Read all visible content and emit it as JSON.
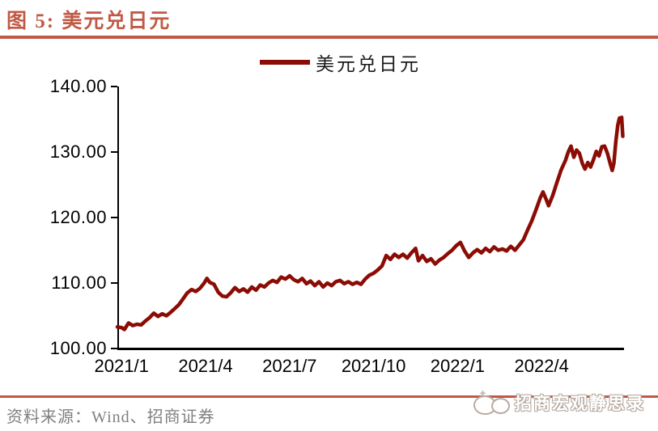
{
  "header": {
    "title": "图 5:  美元兑日元"
  },
  "legend": {
    "label": "美元兑日元"
  },
  "footer": {
    "source": "资料来源：Wind、招商证券",
    "watermark": "招商宏观静思录"
  },
  "colors": {
    "accent": "#C05A45",
    "line": "#8B0C04",
    "axis": "#000000",
    "text": "#1a1a1a",
    "source_text": "#7f7f7f"
  },
  "chart_data": {
    "type": "line",
    "title": "美元兑日元",
    "xlabel": "",
    "ylabel": "",
    "ylim": [
      100,
      140
    ],
    "grid": false,
    "legend_position": "top-center",
    "y_ticks": {
      "values": [
        100,
        110,
        120,
        130,
        140
      ],
      "labels": [
        "100.00",
        "110.00",
        "120.00",
        "130.00",
        "140.00"
      ]
    },
    "x_ticks": {
      "labels": [
        "2021/1",
        "2021/4",
        "2021/7",
        "2021/10",
        "2022/1",
        "2022/4"
      ],
      "month_positions": [
        0,
        3,
        6,
        9,
        12,
        15
      ]
    },
    "series": [
      {
        "name": "美元兑日元",
        "points": [
          [
            -0.15,
            103.3
          ],
          [
            0.0,
            103.2
          ],
          [
            0.1,
            102.9
          ],
          [
            0.25,
            103.9
          ],
          [
            0.4,
            103.5
          ],
          [
            0.55,
            103.7
          ],
          [
            0.7,
            103.6
          ],
          [
            0.85,
            104.2
          ],
          [
            1.0,
            104.7
          ],
          [
            1.15,
            105.4
          ],
          [
            1.3,
            104.9
          ],
          [
            1.45,
            105.3
          ],
          [
            1.6,
            105.0
          ],
          [
            1.75,
            105.5
          ],
          [
            1.9,
            106.1
          ],
          [
            2.05,
            106.7
          ],
          [
            2.2,
            107.6
          ],
          [
            2.35,
            108.5
          ],
          [
            2.5,
            109.0
          ],
          [
            2.65,
            108.7
          ],
          [
            2.8,
            109.2
          ],
          [
            2.95,
            110.0
          ],
          [
            3.05,
            110.7
          ],
          [
            3.15,
            110.1
          ],
          [
            3.3,
            109.8
          ],
          [
            3.45,
            108.6
          ],
          [
            3.6,
            108.0
          ],
          [
            3.75,
            107.9
          ],
          [
            3.9,
            108.5
          ],
          [
            4.05,
            109.3
          ],
          [
            4.2,
            108.7
          ],
          [
            4.35,
            109.1
          ],
          [
            4.5,
            108.6
          ],
          [
            4.65,
            109.4
          ],
          [
            4.8,
            108.9
          ],
          [
            4.95,
            109.7
          ],
          [
            5.1,
            109.4
          ],
          [
            5.25,
            110.0
          ],
          [
            5.4,
            110.4
          ],
          [
            5.55,
            110.1
          ],
          [
            5.7,
            110.9
          ],
          [
            5.85,
            110.6
          ],
          [
            6.0,
            111.1
          ],
          [
            6.15,
            110.5
          ],
          [
            6.3,
            110.2
          ],
          [
            6.45,
            110.7
          ],
          [
            6.6,
            109.9
          ],
          [
            6.75,
            110.3
          ],
          [
            6.9,
            109.6
          ],
          [
            7.05,
            110.2
          ],
          [
            7.2,
            109.4
          ],
          [
            7.35,
            110.0
          ],
          [
            7.5,
            109.6
          ],
          [
            7.65,
            110.2
          ],
          [
            7.8,
            110.4
          ],
          [
            7.95,
            109.9
          ],
          [
            8.1,
            110.2
          ],
          [
            8.25,
            109.8
          ],
          [
            8.4,
            110.1
          ],
          [
            8.55,
            109.8
          ],
          [
            8.7,
            110.6
          ],
          [
            8.85,
            111.2
          ],
          [
            9.0,
            111.5
          ],
          [
            9.15,
            112.0
          ],
          [
            9.3,
            112.6
          ],
          [
            9.45,
            114.2
          ],
          [
            9.6,
            113.6
          ],
          [
            9.75,
            114.4
          ],
          [
            9.9,
            113.9
          ],
          [
            10.05,
            114.4
          ],
          [
            10.2,
            113.8
          ],
          [
            10.35,
            114.6
          ],
          [
            10.5,
            115.3
          ],
          [
            10.6,
            113.4
          ],
          [
            10.75,
            114.2
          ],
          [
            10.9,
            113.3
          ],
          [
            11.05,
            113.7
          ],
          [
            11.2,
            112.9
          ],
          [
            11.35,
            113.5
          ],
          [
            11.5,
            113.9
          ],
          [
            11.65,
            114.5
          ],
          [
            11.8,
            115.0
          ],
          [
            11.95,
            115.7
          ],
          [
            12.1,
            116.2
          ],
          [
            12.25,
            114.9
          ],
          [
            12.4,
            113.9
          ],
          [
            12.55,
            114.6
          ],
          [
            12.7,
            115.1
          ],
          [
            12.85,
            114.6
          ],
          [
            13.0,
            115.3
          ],
          [
            13.15,
            114.8
          ],
          [
            13.3,
            115.5
          ],
          [
            13.45,
            115.0
          ],
          [
            13.6,
            115.2
          ],
          [
            13.75,
            114.9
          ],
          [
            13.9,
            115.6
          ],
          [
            14.05,
            115.0
          ],
          [
            14.2,
            115.8
          ],
          [
            14.35,
            116.6
          ],
          [
            14.5,
            118.1
          ],
          [
            14.65,
            119.5
          ],
          [
            14.8,
            121.2
          ],
          [
            14.95,
            123.0
          ],
          [
            15.05,
            123.9
          ],
          [
            15.15,
            122.9
          ],
          [
            15.25,
            121.8
          ],
          [
            15.4,
            123.4
          ],
          [
            15.55,
            125.4
          ],
          [
            15.7,
            127.3
          ],
          [
            15.85,
            128.7
          ],
          [
            15.95,
            130.0
          ],
          [
            16.05,
            130.9
          ],
          [
            16.15,
            129.2
          ],
          [
            16.25,
            130.3
          ],
          [
            16.35,
            129.8
          ],
          [
            16.45,
            128.3
          ],
          [
            16.55,
            127.4
          ],
          [
            16.65,
            128.4
          ],
          [
            16.75,
            127.7
          ],
          [
            16.85,
            128.8
          ],
          [
            16.95,
            130.1
          ],
          [
            17.05,
            129.4
          ],
          [
            17.15,
            130.8
          ],
          [
            17.25,
            130.9
          ],
          [
            17.35,
            129.8
          ],
          [
            17.45,
            128.2
          ],
          [
            17.52,
            127.2
          ],
          [
            17.58,
            128.3
          ],
          [
            17.65,
            131.6
          ],
          [
            17.72,
            134.1
          ],
          [
            17.78,
            135.2
          ],
          [
            17.82,
            134.6
          ],
          [
            17.86,
            135.3
          ],
          [
            17.9,
            132.4
          ]
        ]
      }
    ]
  }
}
